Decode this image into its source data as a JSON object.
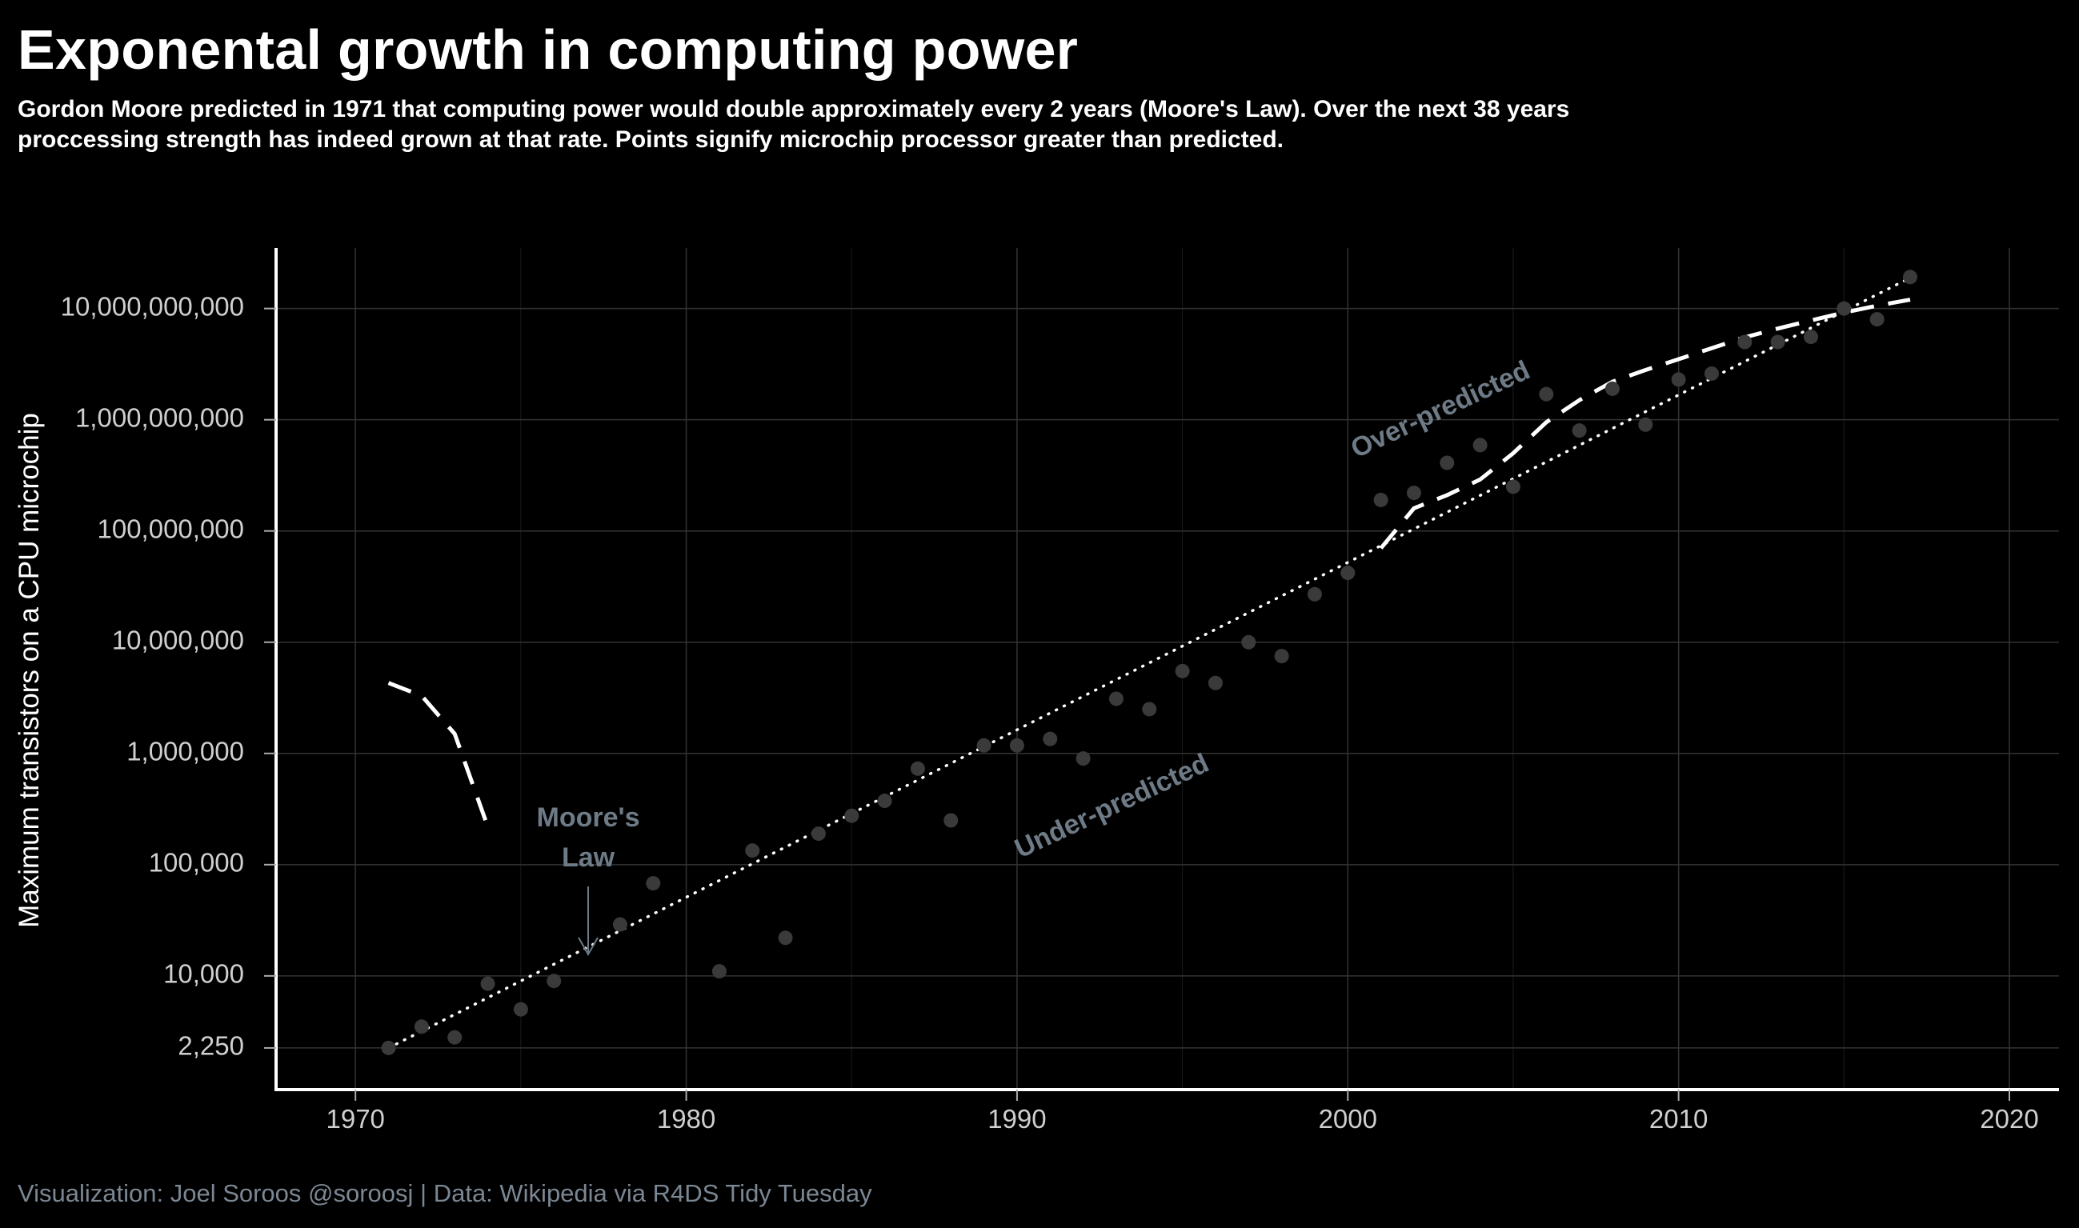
{
  "title": "Exponental growth in computing power",
  "subtitle": "Gordon Moore predicted in 1971 that computing power would double approximately every 2 years (Moore's Law).  Over the next 38 years proccessing strength has indeed grown at that rate.  Points signify microchip processor greater than predicted.",
  "caption": "Visualization: Joel Soroos @soroosj  |  Data: Wikipedia via R4DS Tidy Tuesday",
  "colors": {
    "background": "#000000",
    "points": "#3a3a3a",
    "lines": "#ffffff",
    "annotation": "#6e7b86",
    "grid": "#333333"
  },
  "chart_data": {
    "type": "scatter",
    "title": "Exponental growth in computing power",
    "xlabel": "",
    "ylabel": "Maximum transistors on a CPU microchip",
    "xlim": [
      1967.6,
      2021.5
    ],
    "ylim": [
      950,
      35000000000
    ],
    "y_scale": "log10",
    "grid": true,
    "x_ticks": [
      1970,
      1980,
      1990,
      2000,
      2010,
      2020
    ],
    "x_tick_labels": [
      "1970",
      "1980",
      "1990",
      "2000",
      "2010",
      "2020"
    ],
    "y_ticks": [
      2250,
      10000,
      100000,
      1000000,
      10000000,
      100000000,
      1000000000,
      10000000000
    ],
    "y_tick_labels": [
      "2,250",
      "10,000",
      "100,000",
      "1,000,000",
      "10,000,000",
      "100,000,000",
      "1,000,000,000",
      "10,000,000,000"
    ],
    "series": [
      {
        "type": "points",
        "points": [
          [
            1971,
            2250
          ],
          [
            1972,
            3500
          ],
          [
            1973,
            2800
          ],
          [
            1974,
            8500
          ],
          [
            1975,
            5000
          ],
          [
            1976,
            9000
          ],
          [
            1978,
            29000
          ],
          [
            1979,
            68000
          ],
          [
            1981,
            11000
          ],
          [
            1982,
            134000
          ],
          [
            1983,
            22000
          ],
          [
            1984,
            190000
          ],
          [
            1985,
            275000
          ],
          [
            1986,
            375000
          ],
          [
            1987,
            730000
          ],
          [
            1988,
            250000
          ],
          [
            1989,
            1180000
          ],
          [
            1990,
            1180000
          ],
          [
            1991,
            1350000
          ],
          [
            1992,
            900000
          ],
          [
            1993,
            3100000
          ],
          [
            1994,
            2500000
          ],
          [
            1995,
            5500000
          ],
          [
            1996,
            4300000
          ],
          [
            1997,
            10000000
          ],
          [
            1998,
            7500000
          ],
          [
            1999,
            27000000
          ],
          [
            2000,
            42000000
          ],
          [
            2001,
            190000000
          ],
          [
            2002,
            220000000
          ],
          [
            2003,
            410000000
          ],
          [
            2004,
            592000000
          ],
          [
            2005,
            250000000
          ],
          [
            2006,
            1700000000
          ],
          [
            2007,
            800000000
          ],
          [
            2008,
            1900000000
          ],
          [
            2009,
            904000000
          ],
          [
            2010,
            2300000000
          ],
          [
            2011,
            2600000000
          ],
          [
            2012,
            5000000000
          ],
          [
            2013,
            5000000000
          ],
          [
            2014,
            5560000000
          ],
          [
            2015,
            10000000000
          ],
          [
            2016,
            8000000000
          ],
          [
            2017,
            19200000000
          ]
        ]
      },
      {
        "type": "moores-law-dotted",
        "points": [
          [
            1971,
            2250
          ],
          [
            2017,
            18900000000
          ]
        ]
      },
      {
        "type": "trend-dashed",
        "segments": [
          [
            [
              1971,
              4300000
            ],
            [
              1972,
              3300000
            ],
            [
              1973,
              1500000
            ],
            [
              1974,
              220000
            ]
          ],
          [
            [
              2001,
              70000000
            ],
            [
              2002,
              160000000
            ],
            [
              2003,
              210000000
            ],
            [
              2004,
              290000000
            ],
            [
              2005,
              500000000
            ],
            [
              2006,
              950000000
            ],
            [
              2007,
              1500000000
            ],
            [
              2008,
              2200000000
            ],
            [
              2009,
              2800000000
            ],
            [
              2010,
              3500000000
            ],
            [
              2011,
              4400000000
            ],
            [
              2012,
              5500000000
            ],
            [
              2013,
              6600000000
            ],
            [
              2014,
              7800000000
            ],
            [
              2015,
              9200000000
            ],
            [
              2016,
              10600000000
            ],
            [
              2017,
              12000000000
            ]
          ]
        ]
      }
    ],
    "annotations": {
      "moores_law_line1": "Moore's",
      "moores_law_line2": "Law",
      "over_predicted": "Over-predicted",
      "under_predicted": "Under-predicted"
    }
  }
}
